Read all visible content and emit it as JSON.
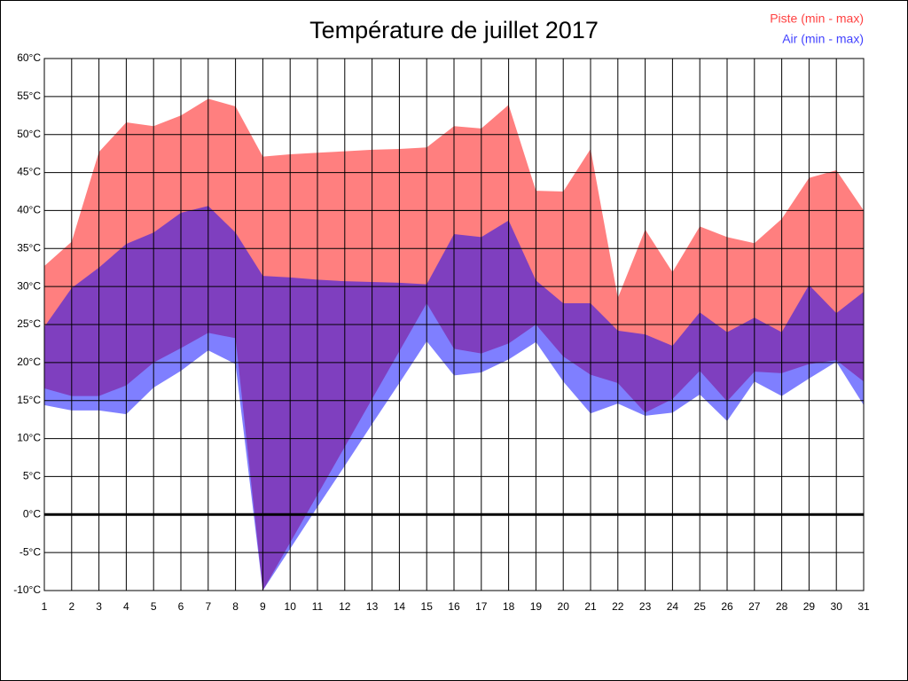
{
  "chart_data": {
    "type": "range-area",
    "title": "Température de juillet 2017",
    "x": [
      1,
      2,
      3,
      4,
      5,
      6,
      7,
      8,
      9,
      10,
      11,
      12,
      13,
      14,
      15,
      16,
      17,
      18,
      19,
      20,
      21,
      22,
      23,
      24,
      25,
      26,
      27,
      28,
      29,
      30,
      31
    ],
    "xlim": [
      1,
      31
    ],
    "ylim": [
      -10,
      60
    ],
    "yticks": [
      {
        "value": -10,
        "label": "-10°C"
      },
      {
        "value": -5,
        "label": "-5°C"
      },
      {
        "value": 0,
        "label": "0°C"
      },
      {
        "value": 5,
        "label": "5°C"
      },
      {
        "value": 10,
        "label": "10°C"
      },
      {
        "value": 15,
        "label": "15°C"
      },
      {
        "value": 20,
        "label": "20°C"
      },
      {
        "value": 25,
        "label": "25°C"
      },
      {
        "value": 30,
        "label": "30°C"
      },
      {
        "value": 35,
        "label": "35°C"
      },
      {
        "value": 40,
        "label": "40°C"
      },
      {
        "value": 45,
        "label": "45°C"
      },
      {
        "value": 50,
        "label": "50°C"
      },
      {
        "value": 55,
        "label": "55°C"
      },
      {
        "value": 60,
        "label": "60°C"
      }
    ],
    "grid": true,
    "legend": "top-right",
    "series": [
      {
        "name": "Piste (min - max)",
        "color": "#ff0000",
        "low": [
          16.6,
          15.6,
          15.6,
          17,
          20,
          21.9,
          23.9,
          23.2,
          -10,
          -3.7,
          2.6,
          8.9,
          15.2,
          21.5,
          27.8,
          21.8,
          21.2,
          22.5,
          25,
          20.8,
          18.4,
          17.3,
          13.4,
          15.2,
          18.9,
          14.9,
          18.8,
          18.6,
          19.8,
          20.3,
          17.5
        ],
        "high": [
          32.7,
          35.9,
          47.7,
          51.6,
          51.1,
          52.5,
          54.7,
          53.7,
          47.1,
          47.4,
          47.6,
          47.8,
          48,
          48.1,
          48.3,
          51.1,
          50.8,
          53.9,
          42.6,
          42.5,
          48.1,
          28.5,
          37.5,
          31.9,
          37.9,
          36.5,
          35.7,
          38.9,
          44.3,
          45.3,
          40
        ]
      },
      {
        "name": "Air (min - max)",
        "color": "#0000ff",
        "low": [
          14.4,
          13.7,
          13.7,
          13.2,
          16.7,
          18.9,
          21.6,
          19.8,
          -10,
          -4.5,
          1,
          6.4,
          11.9,
          17.3,
          22.8,
          18.3,
          18.7,
          20.4,
          22.7,
          17.5,
          13.3,
          14.6,
          13,
          13.4,
          15.8,
          12.3,
          17.5,
          15.6,
          17.9,
          20.1,
          14.4
        ],
        "high": [
          24.7,
          29.8,
          32.5,
          35.6,
          37.1,
          39.7,
          40.6,
          37.1,
          31.4,
          31.2,
          30.9,
          30.7,
          30.6,
          30.5,
          30.3,
          36.9,
          36.5,
          38.7,
          30.8,
          27.8,
          27.8,
          24.2,
          23.7,
          22.2,
          26.6,
          24,
          25.9,
          24,
          30.2,
          26.5,
          29.3
        ]
      }
    ]
  }
}
